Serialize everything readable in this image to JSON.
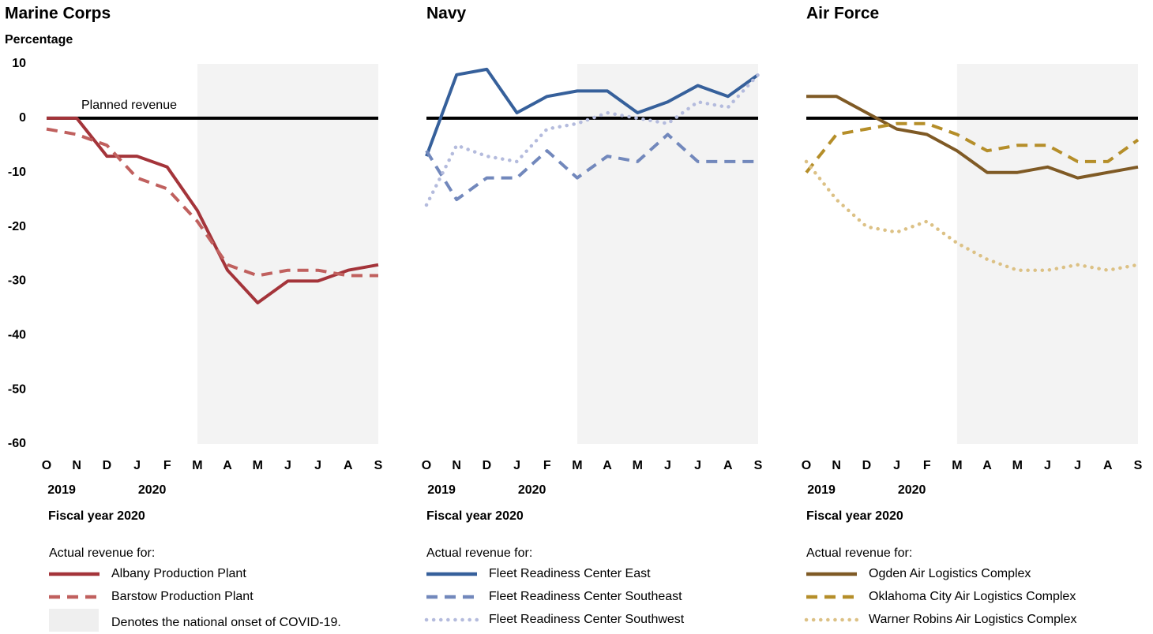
{
  "chart_data": [
    {
      "type": "line",
      "title": "Marine Corps",
      "y_label": "Percentage",
      "x_label": "Fiscal year 2020",
      "categories": [
        "O",
        "N",
        "D",
        "J",
        "F",
        "M",
        "A",
        "M",
        "J",
        "J",
        "A",
        "S"
      ],
      "year_labels": [
        {
          "text": "2019",
          "categories": [
            0,
            1
          ]
        },
        {
          "text": "2020",
          "categories": [
            3,
            4
          ]
        }
      ],
      "ylim": [
        -60,
        10
      ],
      "yticks": [
        10,
        0,
        -10,
        -20,
        -30,
        -40,
        -50,
        -60
      ],
      "reference_line": {
        "value": 0,
        "label": "Planned revenue"
      },
      "shaded": {
        "from": 5,
        "to": 11,
        "color": "#efefef",
        "label": "Denotes the national onset of COVID-19."
      },
      "legend_title": "Actual revenue for:",
      "series": [
        {
          "name": "Albany Production Plant",
          "color": "#a4343a",
          "dash": "solid",
          "values": [
            0,
            0,
            -7,
            -7,
            -9,
            -17,
            -28,
            -34,
            -30,
            -30,
            -28,
            -27
          ]
        },
        {
          "name": "Barstow Production Plant",
          "color": "#c0605e",
          "dash": "dashed",
          "values": [
            -2,
            -3,
            -5,
            -11,
            -13,
            -19,
            -27,
            -29,
            -28,
            -28,
            -29,
            -29
          ]
        }
      ]
    },
    {
      "type": "line",
      "title": "Navy",
      "x_label": "Fiscal year 2020",
      "categories": [
        "O",
        "N",
        "D",
        "J",
        "F",
        "M",
        "A",
        "M",
        "J",
        "J",
        "A",
        "S"
      ],
      "year_labels": [
        {
          "text": "2019",
          "categories": [
            0,
            1
          ]
        },
        {
          "text": "2020",
          "categories": [
            3,
            4
          ]
        }
      ],
      "ylim": [
        -60,
        10
      ],
      "reference_line": {
        "value": 0
      },
      "shaded": {
        "from": 5,
        "to": 11,
        "color": "#efefef"
      },
      "legend_title": "Actual revenue for:",
      "series": [
        {
          "name": "Fleet Readiness Center East",
          "color": "#36609b",
          "dash": "solid",
          "values": [
            -7,
            8,
            9,
            1,
            4,
            5,
            5,
            1,
            3,
            6,
            4,
            8
          ]
        },
        {
          "name": "Fleet Readiness Center Southeast",
          "color": "#7288bc",
          "dash": "dashed",
          "values": [
            -6,
            -15,
            -11,
            -11,
            -6,
            -11,
            -7,
            -8,
            -3,
            -8,
            -8,
            -8
          ]
        },
        {
          "name": "Fleet Readiness Center Southwest",
          "color": "#b4bbdd",
          "dash": "dotted",
          "values": [
            -16,
            -5,
            -7,
            -8,
            -2,
            -1,
            1,
            0,
            -1,
            3,
            2,
            8
          ]
        }
      ]
    },
    {
      "type": "line",
      "title": "Air Force",
      "x_label": "Fiscal year 2020",
      "categories": [
        "O",
        "N",
        "D",
        "J",
        "F",
        "M",
        "A",
        "M",
        "J",
        "J",
        "A",
        "S"
      ],
      "year_labels": [
        {
          "text": "2019",
          "categories": [
            0,
            1
          ]
        },
        {
          "text": "2020",
          "categories": [
            3,
            4
          ]
        }
      ],
      "ylim": [
        -60,
        10
      ],
      "reference_line": {
        "value": 0
      },
      "shaded": {
        "from": 5,
        "to": 11,
        "color": "#efefef"
      },
      "legend_title": "Actual revenue for:",
      "series": [
        {
          "name": "Ogden Air Logistics Complex",
          "color": "#7f5a25",
          "dash": "solid",
          "values": [
            4,
            4,
            1,
            -2,
            -3,
            -6,
            -10,
            -10,
            -9,
            -11,
            -10,
            -9
          ]
        },
        {
          "name": "Oklahoma City Air Logistics Complex",
          "color": "#b58e29",
          "dash": "dashed",
          "values": [
            -10,
            -3,
            -2,
            -1,
            -1,
            -3,
            -6,
            -5,
            -5,
            -8,
            -8,
            -4
          ]
        },
        {
          "name": "Warner Robins Air Logistics Complex",
          "color": "#dcc185",
          "dash": "dotted",
          "values": [
            -8,
            -15,
            -20,
            -21,
            -19,
            -23,
            -26,
            -28,
            -28,
            -27,
            -28,
            -27
          ]
        }
      ]
    }
  ]
}
